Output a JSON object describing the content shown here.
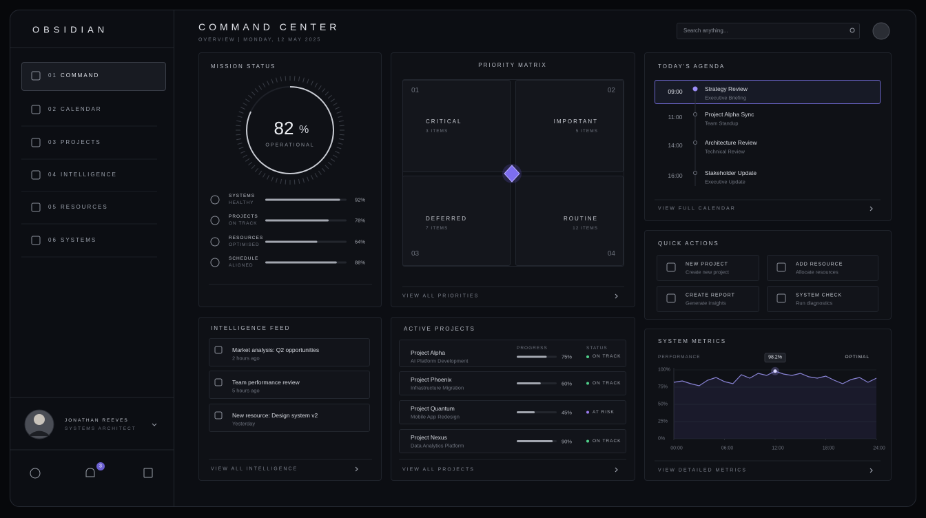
{
  "brand": "OBSIDIAN",
  "nav": [
    {
      "num": "01",
      "label": "COMMAND"
    },
    {
      "num": "02",
      "label": "CALENDAR"
    },
    {
      "num": "03",
      "label": "PROJECTS"
    },
    {
      "num": "04",
      "label": "INTELLIGENCE"
    },
    {
      "num": "05",
      "label": "RESOURCES"
    },
    {
      "num": "06",
      "label": "SYSTEMS"
    }
  ],
  "user": {
    "name": "JONATHAN REEVES",
    "role": "SYSTEMS ARCHITECT"
  },
  "notifications": 3,
  "header": {
    "title": "COMMAND CENTER",
    "subtitle": "OVERVIEW | MONDAY, 12 MAY 2025",
    "search": "Search anything..."
  },
  "mission": {
    "title": "MISSION STATUS",
    "value": 82,
    "unit": "%",
    "label": "OPERATIONAL",
    "metrics": [
      {
        "name": "SYSTEMS",
        "sub": "HEALTHY",
        "value": 92,
        "value_label": "92%"
      },
      {
        "name": "PROJECTS",
        "sub": "ON TRACK",
        "value": 78,
        "value_label": "78%"
      },
      {
        "name": "RESOURCES",
        "sub": "OPTIMISED",
        "value": 64,
        "value_label": "64%"
      },
      {
        "name": "SCHEDULE",
        "sub": "ALIGNED",
        "value": 88,
        "value_label": "88%"
      }
    ]
  },
  "priority": {
    "title": "PRIORITY MATRIX",
    "quadrants": [
      {
        "num": "01",
        "label": "CRITICAL",
        "count": "3 ITEMS"
      },
      {
        "num": "02",
        "label": "IMPORTANT",
        "count": "5 ITEMS"
      },
      {
        "num": "03",
        "label": "DEFERRED",
        "count": "7 ITEMS"
      },
      {
        "num": "04",
        "label": "ROUTINE",
        "count": "12 ITEMS"
      }
    ],
    "link": "VIEW ALL PRIORITIES"
  },
  "agenda": {
    "title": "TODAY'S AGENDA",
    "items": [
      {
        "time": "09:00",
        "title": "Strategy Review",
        "sub": "Executive Briefing"
      },
      {
        "time": "11:00",
        "title": "Project Alpha Sync",
        "sub": "Team Standup"
      },
      {
        "time": "14:00",
        "title": "Architecture Review",
        "sub": "Technical Review"
      },
      {
        "time": "16:00",
        "title": "Stakeholder Update",
        "sub": "Executive Update"
      }
    ],
    "link": "VIEW FULL CALENDAR"
  },
  "actions": {
    "title": "QUICK ACTIONS",
    "items": [
      {
        "title": "NEW PROJECT",
        "sub": "Create new project"
      },
      {
        "title": "ADD RESOURCE",
        "sub": "Allocate resources"
      },
      {
        "title": "CREATE REPORT",
        "sub": "Generate insights"
      },
      {
        "title": "SYSTEM CHECK",
        "sub": "Run diagnostics"
      }
    ]
  },
  "feed": {
    "title": "INTELLIGENCE FEED",
    "items": [
      {
        "title": "Market analysis: Q2 opportunities",
        "time": "2 hours ago"
      },
      {
        "title": "Team performance review",
        "time": "5 hours ago"
      },
      {
        "title": "New resource: Design system v2",
        "time": "Yesterday"
      }
    ],
    "link": "VIEW ALL INTELLIGENCE"
  },
  "projects": {
    "title": "ACTIVE PROJECTS",
    "progress_header": "PROGRESS",
    "status_header": "STATUS",
    "items": [
      {
        "name": "Project Alpha",
        "sub": "AI Platform Development",
        "progress": 75,
        "progress_label": "75%",
        "status": "ON TRACK",
        "color": "#4fd08a"
      },
      {
        "name": "Project Phoenix",
        "sub": "Infrastructure Migration",
        "progress": 60,
        "progress_label": "60%",
        "status": "ON TRACK",
        "color": "#4fd08a"
      },
      {
        "name": "Project Quantum",
        "sub": "Mobile App Redesign",
        "progress": 45,
        "progress_label": "45%",
        "status": "AT RISK",
        "color": "#9b7cf0"
      },
      {
        "name": "Project Nexus",
        "sub": "Data Analytics Platform",
        "progress": 90,
        "progress_label": "90%",
        "status": "ON TRACK",
        "color": "#4fd08a"
      }
    ],
    "link": "VIEW ALL PROJECTS"
  },
  "metrics": {
    "title": "SYSTEM METRICS",
    "label": "PERFORMANCE",
    "status": "OPTIMAL",
    "link": "VIEW DETAILED METRICS",
    "chart": {
      "type": "line",
      "color": "#8b85d8",
      "x": [
        0,
        1,
        2,
        3,
        4,
        5,
        6,
        7,
        8,
        9,
        10,
        11,
        12,
        13,
        14,
        15,
        16,
        17,
        18,
        19,
        20,
        21,
        22,
        23,
        24
      ],
      "values": [
        82,
        84,
        80,
        77,
        85,
        89,
        83,
        80,
        93,
        88,
        95,
        92,
        98.2,
        94,
        92,
        95,
        90,
        88,
        91,
        85,
        80,
        86,
        89,
        82,
        88
      ],
      "value_labels": [
        null,
        null,
        null,
        null,
        null,
        null,
        null,
        null,
        null,
        null,
        null,
        null,
        "98.2%",
        null,
        null,
        null,
        null,
        null,
        null,
        null,
        null,
        null,
        null,
        null,
        null
      ],
      "xlim": [
        0,
        24
      ],
      "xticks": [
        {
          "value": 0,
          "label": "00:00"
        },
        {
          "value": 6,
          "label": "06:00"
        },
        {
          "value": 12,
          "label": "12:00"
        },
        {
          "value": 18,
          "label": "18:00"
        },
        {
          "value": 24,
          "label": "24:00"
        }
      ],
      "ylim": [
        0,
        100
      ],
      "yticks": [
        {
          "value": 100,
          "label": "100%"
        },
        {
          "value": 75,
          "label": "75%"
        },
        {
          "value": 50,
          "label": "50%"
        },
        {
          "value": 25,
          "label": "25%"
        },
        {
          "value": 0,
          "label": "0%"
        }
      ],
      "grid": true
    }
  }
}
